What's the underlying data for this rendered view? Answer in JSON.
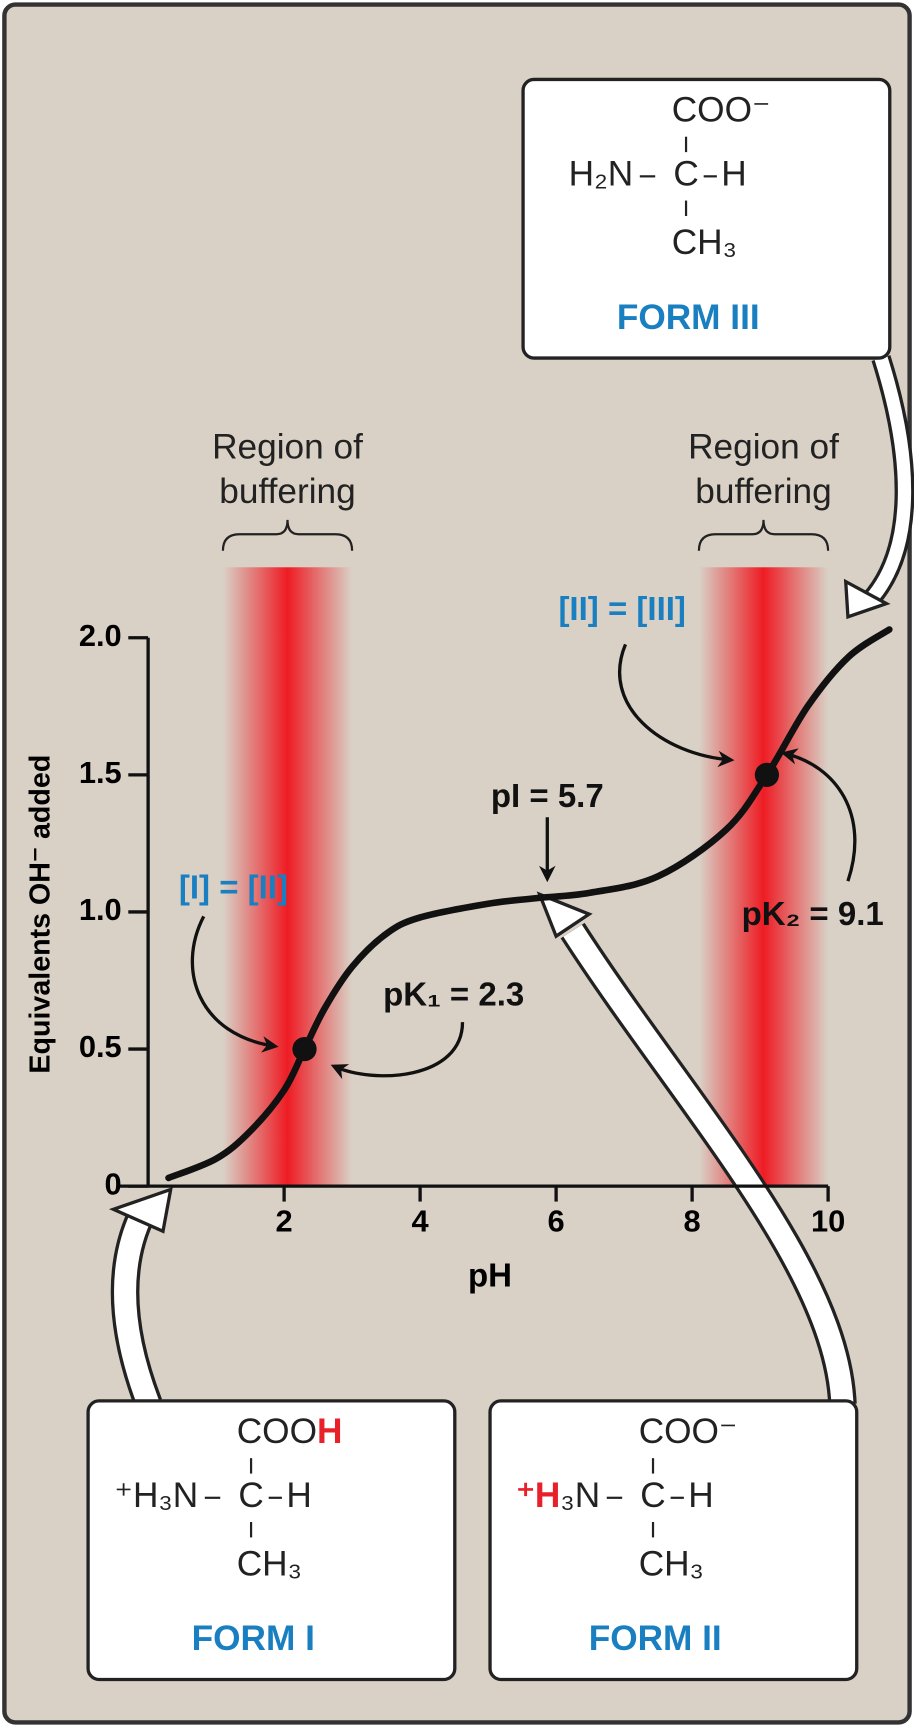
{
  "chart_data": {
    "type": "line",
    "xlabel": "pH",
    "ylabel": "Equivalents OH⁻ added",
    "x": [
      0.3,
      1,
      1.5,
      2,
      2.3,
      2.6,
      3,
      3.5,
      4,
      5,
      5.7,
      6.5,
      7.5,
      8.5,
      9.1,
      9.7,
      10.3,
      10.9
    ],
    "values": [
      0.03,
      0.1,
      0.2,
      0.35,
      0.5,
      0.65,
      0.8,
      0.92,
      0.98,
      1.03,
      1.05,
      1.07,
      1.13,
      1.3,
      1.5,
      1.75,
      1.93,
      2.03
    ],
    "color": "#111111",
    "xlim": [
      0,
      10
    ],
    "ylim": [
      0,
      2
    ],
    "xticks": [
      2,
      4,
      6,
      8,
      10
    ],
    "yticks": [
      0,
      0.5,
      {
        "value": 1,
        "label": "1.0"
      },
      1.5,
      {
        "value": 2,
        "label": "2.0"
      }
    ],
    "points": [
      {
        "x": 2.3,
        "y": 0.5
      },
      {
        "x": 9.1,
        "y": 1.5
      }
    ],
    "buffer_regions": [
      {
        "label": [
          "Region of",
          "buffering"
        ],
        "range": [
          1.1,
          3.0
        ]
      },
      {
        "label": [
          "Region of",
          "buffering"
        ],
        "range": [
          8.1,
          10
        ]
      }
    ],
    "band_color": "#ee1c24",
    "annotations": [
      {
        "text": "[I] = [II]",
        "color": "#1a7fc1"
      },
      {
        "text": "pK₁ = 2.3",
        "color": "#111111"
      },
      {
        "text": "pI = 5.7",
        "color": "#111111"
      },
      {
        "text": "[II] = [III]",
        "color": "#1a7fc1"
      },
      {
        "text": "pK₂ = 9.1",
        "color": "#111111"
      }
    ],
    "forms": [
      {
        "name": "FORM III",
        "top": [
          {
            "text": "COO⁻"
          }
        ],
        "left": [
          {
            "text": "H₂N"
          }
        ],
        "center": "C",
        "right": "H",
        "bottom": "CH₃"
      },
      {
        "name": "FORM I",
        "top": [
          {
            "text": "COO"
          },
          {
            "text": "H",
            "color": "#e8202a"
          }
        ],
        "left": [
          {
            "text": "⁺H₃N"
          }
        ],
        "center": "C",
        "right": "H",
        "bottom": "CH₃"
      },
      {
        "name": "FORM II",
        "top": [
          {
            "text": "COO⁻"
          }
        ],
        "left": [
          {
            "text": "⁺H",
            "color": "#e8202a"
          },
          {
            "text": "₃N"
          }
        ],
        "center": "C",
        "right": "H",
        "bottom": "CH₃"
      }
    ],
    "form_label_color": "#1a7fc1"
  }
}
